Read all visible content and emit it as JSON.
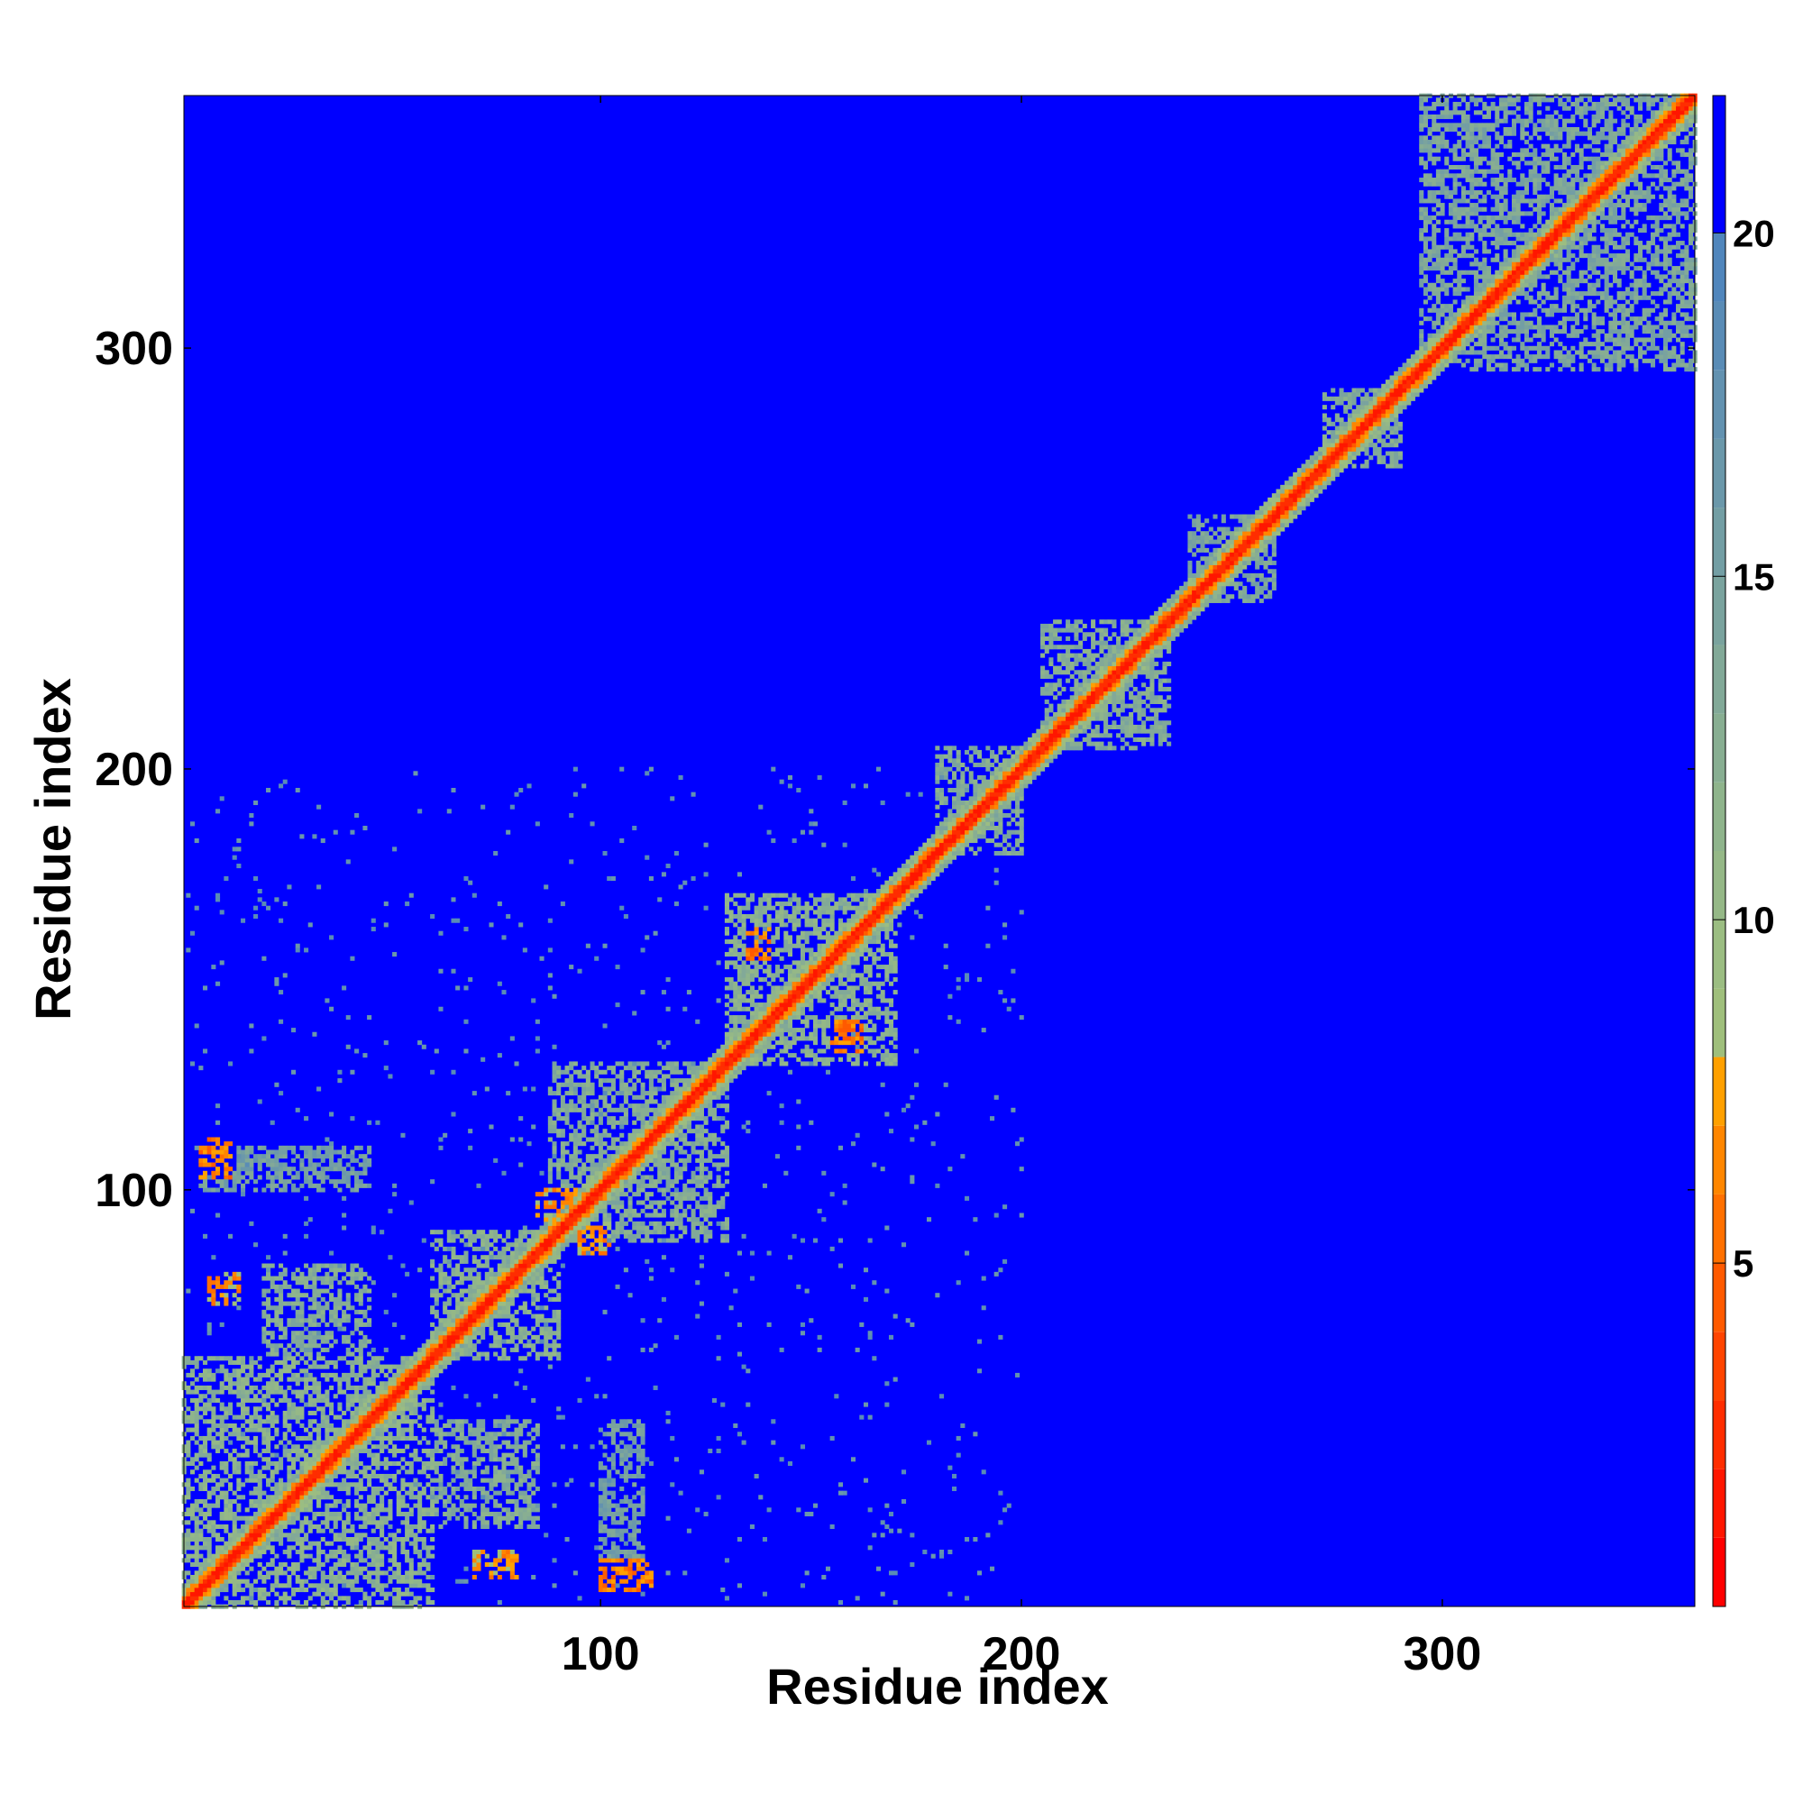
{
  "chart_data": {
    "type": "heatmap",
    "title": "",
    "xlabel": "Residue index",
    "ylabel": "Residue index",
    "xlim": [
      1,
      360
    ],
    "ylim": [
      1,
      360
    ],
    "x_ticks": [
      100,
      200,
      300
    ],
    "y_ticks": [
      100,
      200,
      300
    ],
    "grid": false,
    "legend": "colorbar-right",
    "colorbar": {
      "range": [
        0,
        22
      ],
      "ticks": [
        5,
        10,
        15,
        20
      ],
      "bands": [
        {
          "max": 1,
          "color": "#ff0000"
        },
        {
          "max": 2,
          "color": "#ff1600"
        },
        {
          "max": 3,
          "color": "#ff2d00"
        },
        {
          "max": 4,
          "color": "#ff4400"
        },
        {
          "max": 5,
          "color": "#ff5a00"
        },
        {
          "max": 6,
          "color": "#ff7000"
        },
        {
          "max": 7,
          "color": "#ff8600"
        },
        {
          "max": 8,
          "color": "#ffa000"
        },
        {
          "max": 9,
          "color": "#9fbf7c"
        },
        {
          "max": 10,
          "color": "#9bbd82"
        },
        {
          "max": 11,
          "color": "#95b887"
        },
        {
          "max": 12,
          "color": "#8fb48c"
        },
        {
          "max": 13,
          "color": "#88ae92"
        },
        {
          "max": 14,
          "color": "#82a998"
        },
        {
          "max": 15,
          "color": "#7aa39e"
        },
        {
          "max": 16,
          "color": "#739ea4"
        },
        {
          "max": 17,
          "color": "#6b98aa"
        },
        {
          "max": 18,
          "color": "#6392b0"
        },
        {
          "max": 19,
          "color": "#5a8cb6"
        },
        {
          "max": 20,
          "color": "#5186bc"
        },
        {
          "max": 22,
          "color": "#0000ff"
        }
      ]
    },
    "background_color": "#0000ff",
    "diagonal_core_color": "#ff0000",
    "diagonal_mid_color": "#ff7000",
    "diagonal_halo_color": "#9bbd82",
    "regions": [
      {
        "x": [
          1,
          60
        ],
        "y": [
          1,
          60
        ],
        "value": 12
      },
      {
        "x": [
          60,
          90
        ],
        "y": [
          60,
          90
        ],
        "value": 12
      },
      {
        "x": [
          88,
          130
        ],
        "y": [
          88,
          130
        ],
        "value": 13
      },
      {
        "x": [
          130,
          170
        ],
        "y": [
          130,
          170
        ],
        "value": 12
      },
      {
        "x": [
          180,
          200
        ],
        "y": [
          180,
          205
        ],
        "value": 13
      },
      {
        "x": [
          205,
          235
        ],
        "y": [
          205,
          235
        ],
        "value": 13
      },
      {
        "x": [
          240,
          260
        ],
        "y": [
          240,
          260
        ],
        "value": 14
      },
      {
        "x": [
          272,
          290
        ],
        "y": [
          272,
          290
        ],
        "value": 13
      },
      {
        "x": [
          295,
          360
        ],
        "y": [
          295,
          360
        ],
        "value": 14
      },
      {
        "x": [
          5,
          12
        ],
        "y": [
          103,
          112
        ],
        "value": 6
      },
      {
        "x": [
          7,
          14
        ],
        "y": [
          73,
          80
        ],
        "value": 7
      },
      {
        "x": [
          100,
          112
        ],
        "y": [
          5,
          12
        ],
        "value": 6
      },
      {
        "x": [
          70,
          80
        ],
        "y": [
          8,
          14
        ],
        "value": 7
      },
      {
        "x": [
          135,
          140
        ],
        "y": [
          155,
          162
        ],
        "value": 6
      },
      {
        "x": [
          155,
          162
        ],
        "y": [
          133,
          140
        ],
        "value": 6
      },
      {
        "x": [
          85,
          95
        ],
        "y": [
          92,
          100
        ],
        "value": 7
      },
      {
        "x": [
          95,
          102
        ],
        "y": [
          85,
          92
        ],
        "value": 7
      },
      {
        "x": [
          20,
          45
        ],
        "y": [
          60,
          82
        ],
        "value": 13
      },
      {
        "x": [
          60,
          85
        ],
        "y": [
          20,
          45
        ],
        "value": 13
      },
      {
        "x": [
          5,
          25
        ],
        "y": [
          15,
          55
        ],
        "value": 14
      },
      {
        "x": [
          15,
          55
        ],
        "y": [
          5,
          25
        ],
        "value": 14
      },
      {
        "x": [
          5,
          45
        ],
        "y": [
          100,
          110
        ],
        "value": 15
      },
      {
        "x": [
          100,
          110
        ],
        "y": [
          5,
          45
        ],
        "value": 15
      }
    ]
  }
}
